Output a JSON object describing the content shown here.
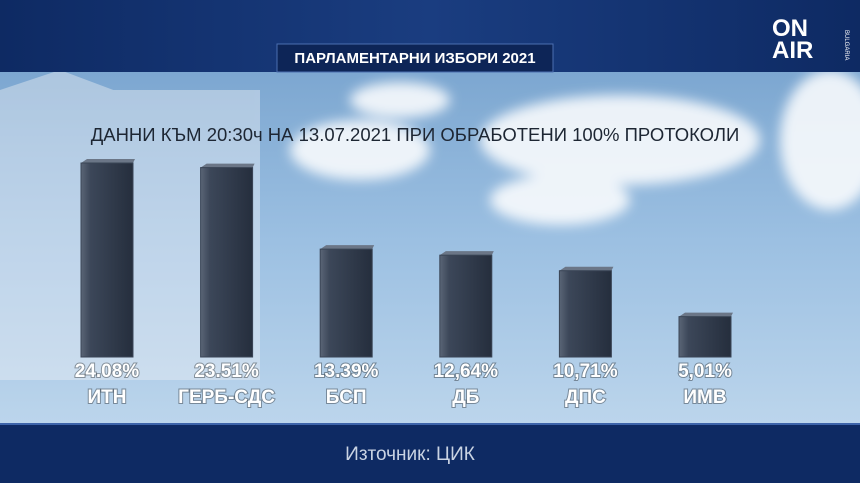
{
  "logo": {
    "line1": "ON",
    "line2": "AIR",
    "sub": "BULGARIA"
  },
  "chart_data": {
    "type": "bar",
    "title": "ПАРЛАМЕНТАРНИ ИЗБОРИ 2021",
    "subtitle": "ДАННИ КЪМ 20:30ч НА 13.07.2021 ПРИ ОБРАБОТЕНИ 100% ПРОТОКОЛИ",
    "source": "Източник: ЦИК",
    "categories": [
      "ИТН",
      "ГЕРБ-СДС",
      "БСП",
      "ДБ",
      "ДПС",
      "ИМВ"
    ],
    "values": [
      24.08,
      23.51,
      13.39,
      12.64,
      10.71,
      5.01
    ],
    "value_labels": [
      "24.08%",
      "23.51%",
      "13.39%",
      "12,64%",
      "10,71%",
      "5,01%"
    ],
    "color": "#3a4556"
  }
}
